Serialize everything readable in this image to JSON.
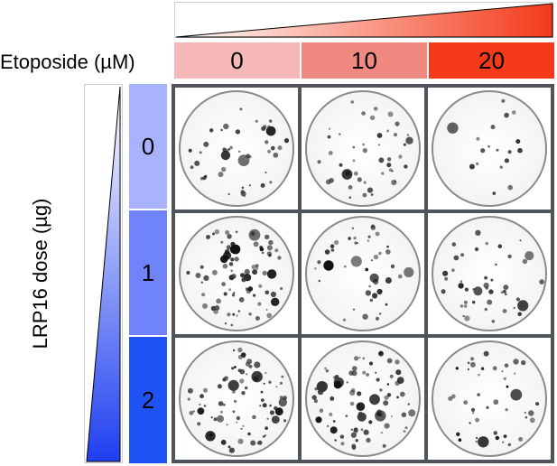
{
  "colors": {
    "etoposide_low": "#f5b7b7",
    "etoposide_mid": "#f08a80",
    "etoposide_high": "#f43a1a",
    "lrp_low": "#a9b2ff",
    "lrp_mid": "#6f83fb",
    "lrp_high": "#2053f5",
    "grid_border": "#50555c"
  },
  "etoposide": {
    "label": "Etoposide (µM)",
    "doses": [
      "0",
      "10",
      "20"
    ]
  },
  "lrp16": {
    "label": "LRP16 dose (µg)",
    "doses": [
      "0",
      "1",
      "2"
    ]
  },
  "plates": [
    {
      "row": 0,
      "col": 0,
      "name": "plate-lrp0-eto0",
      "colony_density": "moderate"
    },
    {
      "row": 0,
      "col": 1,
      "name": "plate-lrp0-eto10",
      "colony_density": "moderate"
    },
    {
      "row": 0,
      "col": 2,
      "name": "plate-lrp0-eto20",
      "colony_density": "low"
    },
    {
      "row": 1,
      "col": 0,
      "name": "plate-lrp1-eto0",
      "colony_density": "high"
    },
    {
      "row": 1,
      "col": 1,
      "name": "plate-lrp1-eto10",
      "colony_density": "moderate"
    },
    {
      "row": 1,
      "col": 2,
      "name": "plate-lrp1-eto20",
      "colony_density": "moderate"
    },
    {
      "row": 2,
      "col": 0,
      "name": "plate-lrp2-eto0",
      "colony_density": "high"
    },
    {
      "row": 2,
      "col": 1,
      "name": "plate-lrp2-eto10",
      "colony_density": "high"
    },
    {
      "row": 2,
      "col": 2,
      "name": "plate-lrp2-eto20",
      "colony_density": "moderate"
    }
  ]
}
